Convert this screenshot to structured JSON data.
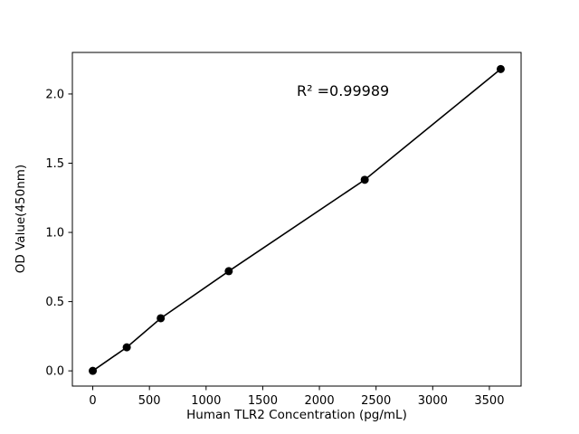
{
  "chart_data": {
    "type": "scatter",
    "title": "",
    "xlabel": "Human TLR2 Concentration (pg/mL)",
    "ylabel": "OD Value(450nm)",
    "x": [
      0,
      300,
      600,
      1200,
      2400,
      3600
    ],
    "y": [
      0.0,
      0.17,
      0.38,
      0.72,
      1.38,
      2.18
    ],
    "fit_line": true,
    "annotation": {
      "text": "R² =0.99989",
      "x": 1800,
      "y": 2.02
    },
    "xlim": [
      -180,
      3780
    ],
    "ylim": [
      -0.11,
      2.3
    ],
    "xticks": [
      0,
      500,
      1000,
      1500,
      2000,
      2500,
      3000,
      3500
    ],
    "yticks": [
      0.0,
      0.5,
      1.0,
      1.5,
      2.0
    ],
    "grid": false,
    "legend": null,
    "marker_color": "#000000",
    "line_color": "#000000",
    "axis_color": "#000000",
    "background": "#ffffff"
  }
}
